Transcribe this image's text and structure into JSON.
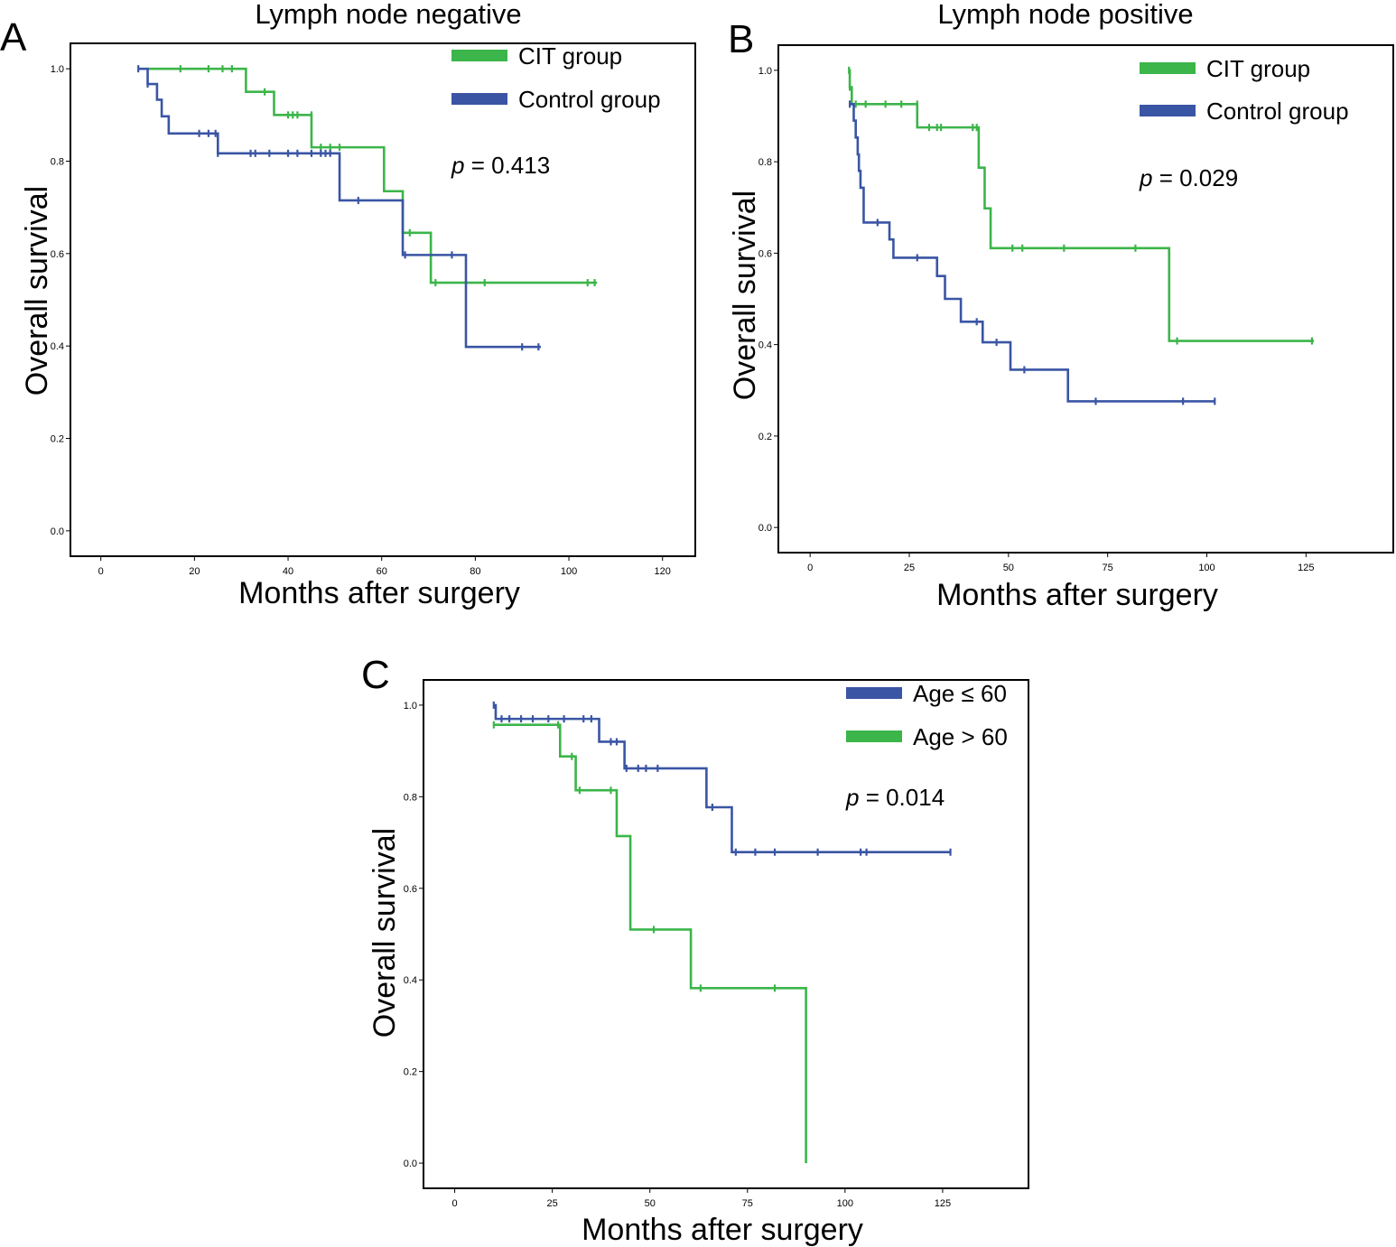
{
  "chart_data": [
    {
      "type": "line",
      "subtype": "kaplan-meier",
      "panel_label": "A",
      "title": "Lymph node negative",
      "xlabel": "Months after surgery",
      "ylabel": "Overall survival",
      "xlim": [
        -6.5,
        127
      ],
      "ylim": [
        -0.055,
        1.055
      ],
      "xticks": [
        0,
        20,
        40,
        60,
        80,
        100,
        120
      ],
      "xtick_labels": [
        "0",
        "20",
        "40",
        "60",
        "80",
        "100",
        "120"
      ],
      "yticks": [
        0,
        0.2,
        0.4,
        0.6,
        0.8,
        1.0
      ],
      "ytick_labels": [
        "0.0",
        "0.2",
        "0.4",
        "0.6",
        "0.8",
        "1.0"
      ],
      "grid": false,
      "legend_position": "top-right",
      "p_value": {
        "symbol": "p",
        "text": " = 0.413"
      },
      "series": [
        {
          "name": "CIT group",
          "color": "#3cb54a",
          "steps": [
            [
              10,
              1.0
            ],
            [
              31,
              0.95
            ],
            [
              37,
              0.9
            ],
            [
              45,
              0.83
            ],
            [
              60.5,
              0.735
            ],
            [
              64.5,
              0.645
            ],
            [
              70.5,
              0.537
            ],
            [
              106,
              0.537
            ]
          ],
          "censored": [
            [
              17,
              1.0
            ],
            [
              23,
              1.0
            ],
            [
              26,
              1.0
            ],
            [
              28,
              1.0
            ],
            [
              35,
              0.95
            ],
            [
              40,
              0.9
            ],
            [
              41,
              0.9
            ],
            [
              42,
              0.9
            ],
            [
              45,
              0.9
            ],
            [
              47,
              0.83
            ],
            [
              49,
              0.83
            ],
            [
              51,
              0.83
            ],
            [
              66,
              0.645
            ],
            [
              71.5,
              0.537
            ],
            [
              82,
              0.537
            ],
            [
              104,
              0.537
            ],
            [
              105.5,
              0.537
            ]
          ]
        },
        {
          "name": "Control group",
          "color": "#3a55a4",
          "steps": [
            [
              8,
              1.0
            ],
            [
              10,
              0.967
            ],
            [
              12,
              0.933
            ],
            [
              13,
              0.897
            ],
            [
              14.5,
              0.86
            ],
            [
              25,
              0.817
            ],
            [
              51,
              0.715
            ],
            [
              64.5,
              0.597
            ],
            [
              78,
              0.398
            ],
            [
              94,
              0.398
            ]
          ],
          "censored": [
            [
              8,
              1.0
            ],
            [
              10,
              0.967
            ],
            [
              21,
              0.86
            ],
            [
              23,
              0.86
            ],
            [
              24.5,
              0.86
            ],
            [
              25,
              0.817
            ],
            [
              32,
              0.817
            ],
            [
              33,
              0.817
            ],
            [
              36,
              0.817
            ],
            [
              40,
              0.817
            ],
            [
              42,
              0.817
            ],
            [
              45,
              0.817
            ],
            [
              47,
              0.817
            ],
            [
              48,
              0.817
            ],
            [
              49,
              0.817
            ],
            [
              55,
              0.715
            ],
            [
              65,
              0.597
            ],
            [
              75,
              0.597
            ],
            [
              90,
              0.398
            ],
            [
              93.5,
              0.398
            ]
          ]
        }
      ]
    },
    {
      "type": "line",
      "subtype": "kaplan-meier",
      "panel_label": "B",
      "title": "Lymph node positive",
      "xlabel": "Months after surgery",
      "ylabel": "Overall survival",
      "xlim": [
        -8,
        147
      ],
      "ylim": [
        -0.055,
        1.055
      ],
      "xticks": [
        0,
        25,
        50,
        75,
        100,
        125
      ],
      "xtick_labels": [
        "0",
        "25",
        "50",
        "75",
        "100",
        "125"
      ],
      "yticks": [
        0,
        0.2,
        0.4,
        0.6,
        0.8,
        1.0
      ],
      "ytick_labels": [
        "0.0",
        "0.2",
        "0.4",
        "0.6",
        "0.8",
        "1.0"
      ],
      "grid": false,
      "legend_position": "top-right",
      "p_value": {
        "symbol": "p",
        "text": " = 0.029"
      },
      "series": [
        {
          "name": "CIT group",
          "color": "#3cb54a",
          "steps": [
            [
              9.8,
              1.0
            ],
            [
              10,
              0.963
            ],
            [
              10.5,
              0.926
            ],
            [
              27,
              0.875
            ],
            [
              42.5,
              0.787
            ],
            [
              44,
              0.698
            ],
            [
              45.5,
              0.611
            ],
            [
              90.5,
              0.408
            ],
            [
              127,
              0.408
            ]
          ],
          "censored": [
            [
              9.8,
              1.0
            ],
            [
              10,
              0.963
            ],
            [
              11.5,
              0.926
            ],
            [
              14,
              0.926
            ],
            [
              19,
              0.926
            ],
            [
              23,
              0.926
            ],
            [
              27,
              0.926
            ],
            [
              30,
              0.875
            ],
            [
              32,
              0.875
            ],
            [
              33,
              0.875
            ],
            [
              41,
              0.875
            ],
            [
              42,
              0.875
            ],
            [
              51,
              0.611
            ],
            [
              53.5,
              0.611
            ],
            [
              64,
              0.611
            ],
            [
              82,
              0.611
            ],
            [
              92.5,
              0.408
            ],
            [
              126.5,
              0.408
            ]
          ]
        },
        {
          "name": "Control group",
          "color": "#3a55a4",
          "steps": [
            [
              10,
              0.926
            ],
            [
              11,
              0.89
            ],
            [
              11.5,
              0.853
            ],
            [
              12,
              0.816
            ],
            [
              12.3,
              0.78
            ],
            [
              12.7,
              0.743
            ],
            [
              13.5,
              0.667
            ],
            [
              20,
              0.63
            ],
            [
              21,
              0.59
            ],
            [
              32,
              0.55
            ],
            [
              34,
              0.5
            ],
            [
              38,
              0.45
            ],
            [
              43.5,
              0.405
            ],
            [
              50.5,
              0.345
            ],
            [
              65,
              0.276
            ],
            [
              102,
              0.276
            ]
          ],
          "censored": [
            [
              10,
              0.926
            ],
            [
              17,
              0.667
            ],
            [
              27,
              0.59
            ],
            [
              42,
              0.45
            ],
            [
              47,
              0.405
            ],
            [
              54,
              0.345
            ],
            [
              72,
              0.276
            ],
            [
              94,
              0.276
            ],
            [
              102,
              0.276
            ]
          ]
        }
      ]
    },
    {
      "type": "line",
      "subtype": "kaplan-meier",
      "panel_label": "C",
      "title": "",
      "xlabel": "Months after surgery",
      "ylabel": "Overall survival",
      "xlim": [
        -8,
        147
      ],
      "ylim": [
        -0.055,
        1.055
      ],
      "xticks": [
        0,
        25,
        50,
        75,
        100,
        125
      ],
      "xtick_labels": [
        "0",
        "25",
        "50",
        "75",
        "100",
        "125"
      ],
      "yticks": [
        0,
        0.2,
        0.4,
        0.6,
        0.8,
        1.0
      ],
      "ytick_labels": [
        "0.0",
        "0.2",
        "0.4",
        "0.6",
        "0.8",
        "1.0"
      ],
      "grid": false,
      "legend_position": "top-right",
      "p_value": {
        "symbol": "p",
        "text": " = 0.014"
      },
      "series": [
        {
          "name": "Age ≤ 60",
          "color": "#3a55a4",
          "steps": [
            [
              10,
              1.0
            ],
            [
              10.5,
              0.97
            ],
            [
              37,
              0.92
            ],
            [
              43.5,
              0.862
            ],
            [
              64.5,
              0.777
            ],
            [
              71,
              0.679
            ],
            [
              127,
              0.679
            ]
          ],
          "censored": [
            [
              10,
              1.0
            ],
            [
              12,
              0.97
            ],
            [
              14,
              0.97
            ],
            [
              17,
              0.97
            ],
            [
              20,
              0.97
            ],
            [
              24,
              0.97
            ],
            [
              28,
              0.97
            ],
            [
              33,
              0.97
            ],
            [
              35,
              0.97
            ],
            [
              40,
              0.92
            ],
            [
              41.5,
              0.92
            ],
            [
              44,
              0.862
            ],
            [
              47,
              0.862
            ],
            [
              49,
              0.862
            ],
            [
              52,
              0.862
            ],
            [
              66,
              0.777
            ],
            [
              72,
              0.679
            ],
            [
              77,
              0.679
            ],
            [
              82,
              0.679
            ],
            [
              93,
              0.679
            ],
            [
              104,
              0.679
            ],
            [
              105.5,
              0.679
            ],
            [
              127,
              0.679
            ]
          ]
        },
        {
          "name": "Age > 60",
          "color": "#3cb54a",
          "steps": [
            [
              10,
              0.957
            ],
            [
              27,
              0.888
            ],
            [
              31,
              0.814
            ],
            [
              41.5,
              0.714
            ],
            [
              45,
              0.51
            ],
            [
              60.5,
              0.382
            ],
            [
              90,
              0.0
            ]
          ],
          "censored": [
            [
              10,
              0.957
            ],
            [
              26.5,
              0.957
            ],
            [
              30,
              0.888
            ],
            [
              32,
              0.814
            ],
            [
              40,
              0.814
            ],
            [
              51,
              0.51
            ],
            [
              63,
              0.382
            ],
            [
              82,
              0.382
            ]
          ]
        }
      ]
    }
  ]
}
